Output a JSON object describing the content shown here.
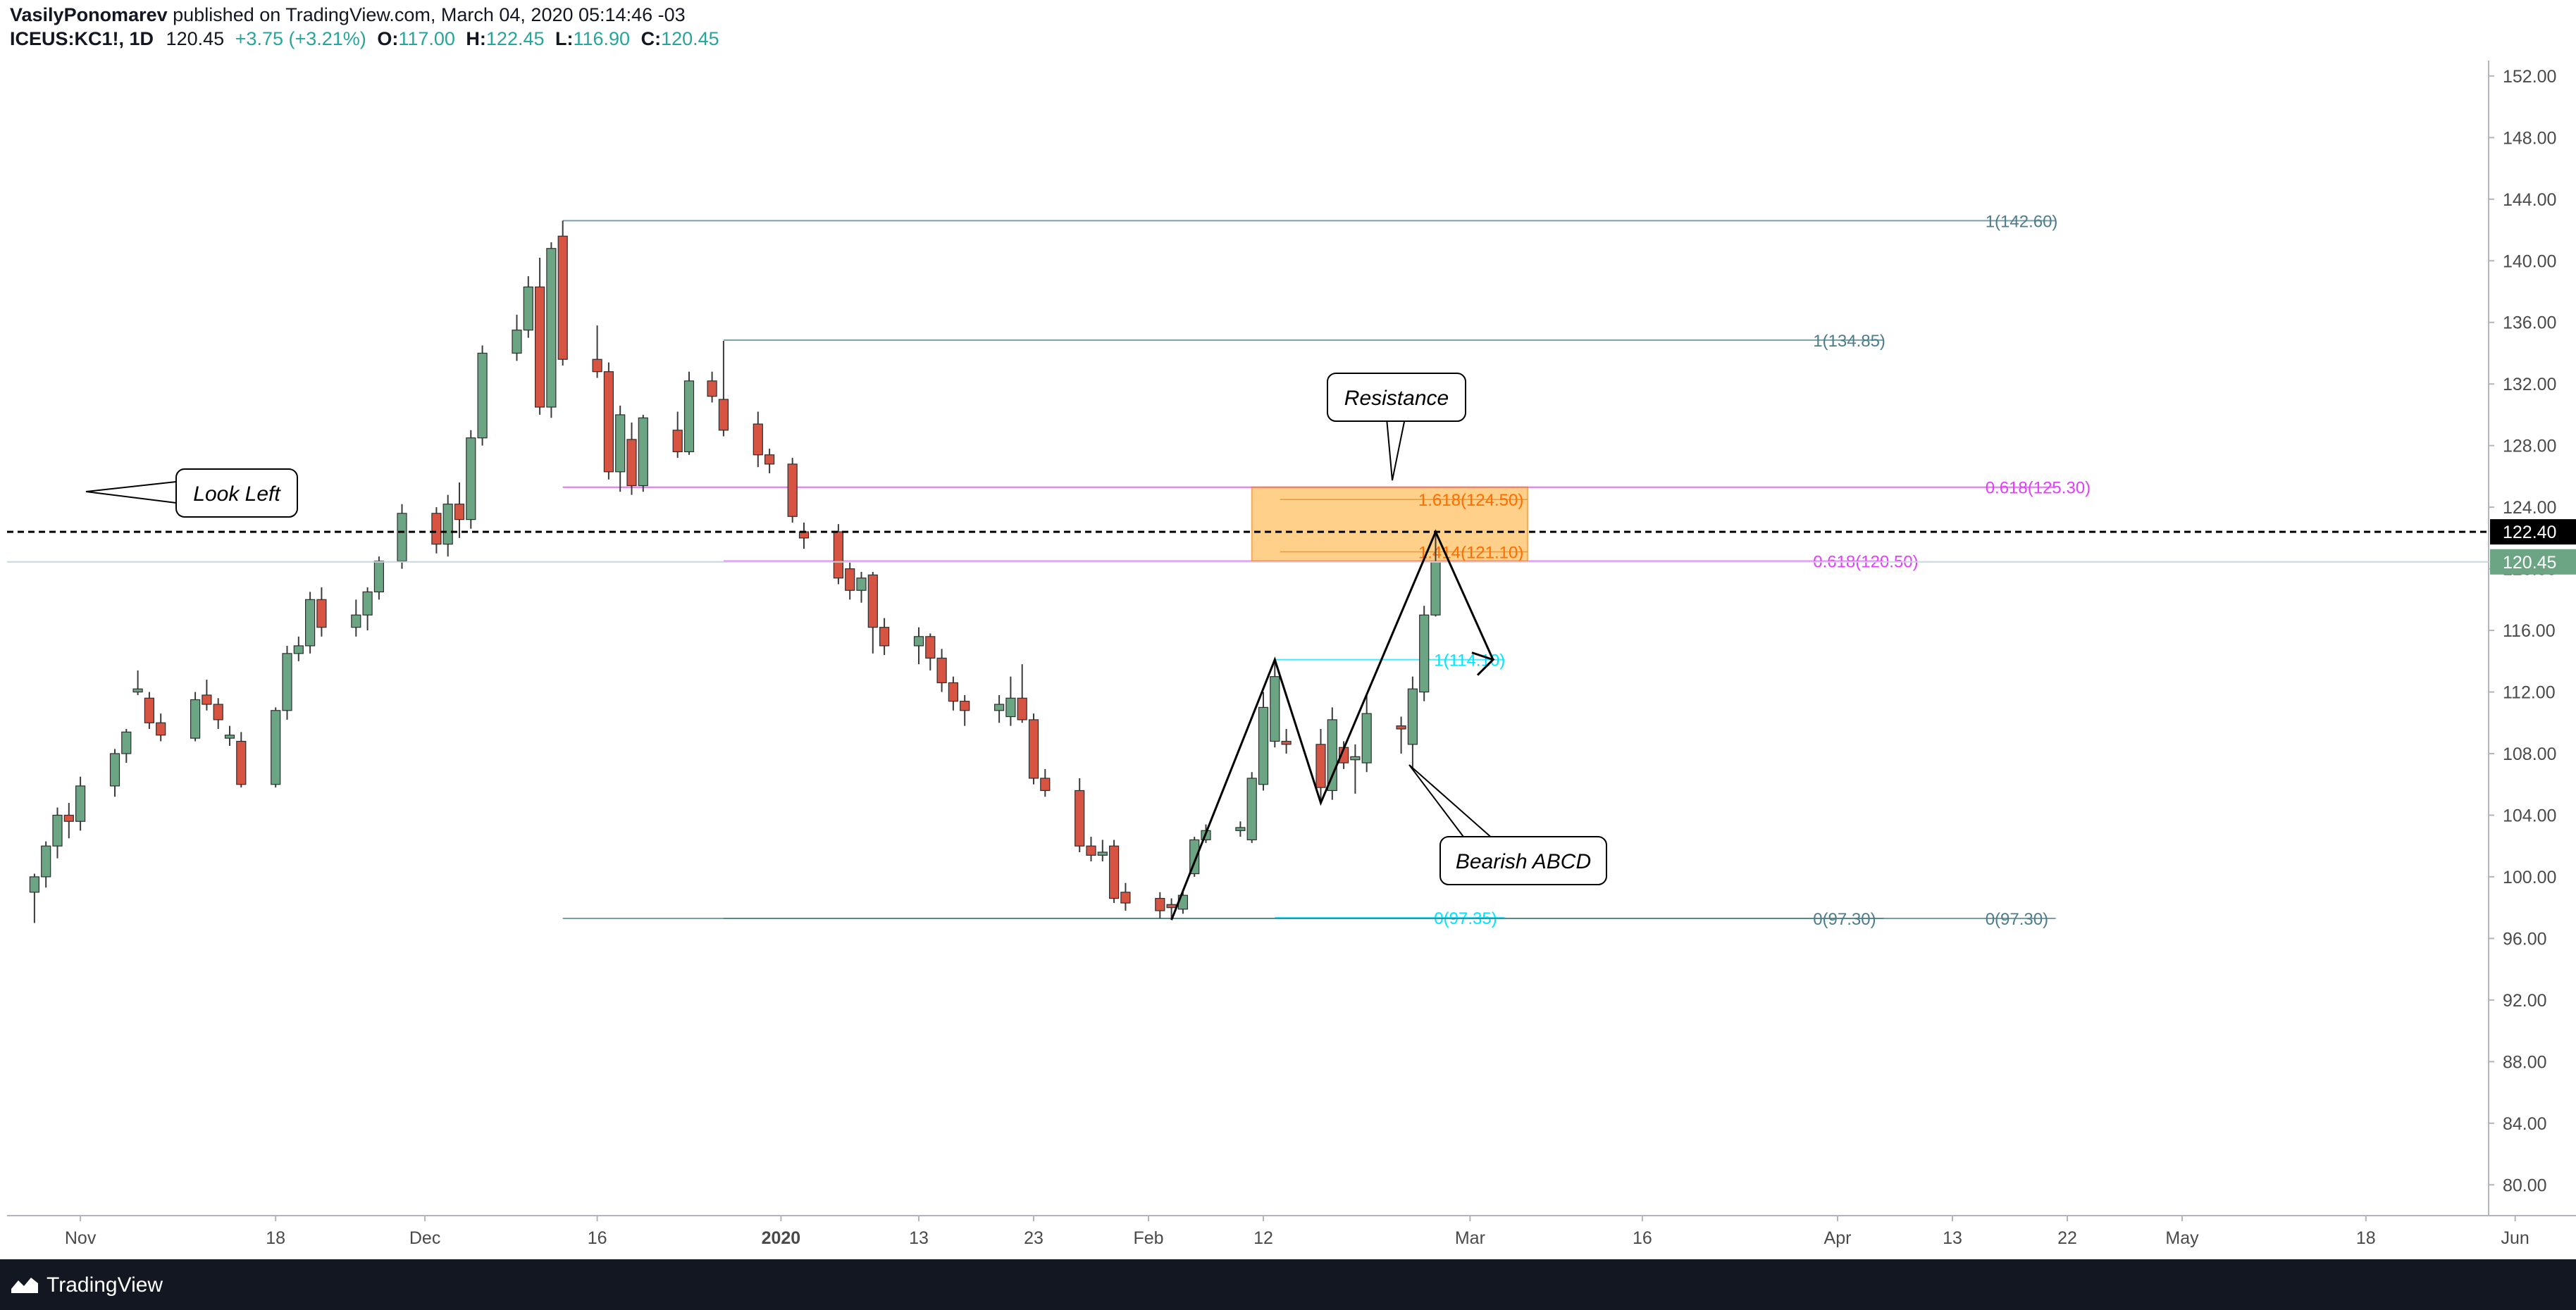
{
  "header": {
    "author": "VasilyPonomarev",
    "published": "published on TradingView.com, March 04, 2020 05:14:46 -03",
    "symbol": "ICEUS:KC1!, 1D",
    "last": "120.45",
    "change": "+3.75 (+3.21%)",
    "o_label": "O:",
    "o_value": "117.00",
    "h_label": "H:",
    "h_value": "122.45",
    "l_label": "L:",
    "l_value": "116.90",
    "c_label": "C:",
    "c_value": "120.45"
  },
  "footer": {
    "brand": "TradingView"
  },
  "colors": {
    "up": "#6ba583",
    "down": "#d75442",
    "wick": "#3b3b3b",
    "fib_gray": "#4d7e8a",
    "fib_magenta": "#e040fb",
    "fib_cyan": "#00e5ff",
    "fib_orange": "#ff6d00",
    "zone": "#ffb74d"
  },
  "chart_data": {
    "type": "candlestick",
    "y_axis": {
      "min": 78,
      "max": 153,
      "ticks": [
        80,
        84,
        88,
        92,
        96,
        100,
        104,
        108,
        112,
        116,
        120,
        124,
        128,
        132,
        136,
        140,
        144,
        148,
        152
      ],
      "labels": [
        "80.00",
        "84.00",
        "88.00",
        "92.00",
        "96.00",
        "100.00",
        "104.00",
        "108.00",
        "112.00",
        "116.00",
        "120.00",
        "124.00",
        "128.00",
        "132.00",
        "136.00",
        "140.00",
        "144.00",
        "148.00",
        "152.00"
      ]
    },
    "x_axis": {
      "start_date": "2019-10-25",
      "ticks": [
        {
          "d": 7,
          "label": "Nov",
          "bold": false
        },
        {
          "d": 24,
          "label": "18",
          "bold": false
        },
        {
          "d": 37,
          "label": "Dec",
          "bold": false
        },
        {
          "d": 52,
          "label": "16",
          "bold": false
        },
        {
          "d": 68,
          "label": "2020",
          "bold": true
        },
        {
          "d": 80,
          "label": "13",
          "bold": false
        },
        {
          "d": 90,
          "label": "23",
          "bold": false
        },
        {
          "d": 100,
          "label": "Feb",
          "bold": false
        },
        {
          "d": 110,
          "label": "12",
          "bold": false
        },
        {
          "d": 128,
          "label": "Mar",
          "bold": false
        },
        {
          "d": 143,
          "label": "16",
          "bold": false
        },
        {
          "d": 160,
          "label": "Apr",
          "bold": false
        },
        {
          "d": 170,
          "label": "13",
          "bold": false
        },
        {
          "d": 180,
          "label": "22",
          "bold": false
        },
        {
          "d": 190,
          "label": "May",
          "bold": false
        },
        {
          "d": 206,
          "label": "18",
          "bold": false
        },
        {
          "d": 219,
          "label": "Jun",
          "bold": false
        }
      ]
    },
    "candles": [
      {
        "date": "2019-10-25",
        "o": 100.5,
        "h": 101.0,
        "l": 97.2,
        "c": 99.0
      },
      {
        "date": "2019-10-28",
        "o": 99.0,
        "h": 100.2,
        "l": 97.0,
        "c": 100.0
      },
      {
        "date": "2019-10-29",
        "o": 100.0,
        "h": 102.3,
        "l": 99.3,
        "c": 102.0
      },
      {
        "date": "2019-10-30",
        "o": 102.0,
        "h": 104.5,
        "l": 101.2,
        "c": 104.0
      },
      {
        "date": "2019-10-31",
        "o": 104.0,
        "h": 104.8,
        "l": 102.5,
        "c": 103.6
      },
      {
        "date": "2019-11-01",
        "o": 103.6,
        "h": 106.5,
        "l": 103.0,
        "c": 105.9
      },
      {
        "date": "2019-11-04",
        "o": 105.9,
        "h": 108.3,
        "l": 105.2,
        "c": 108.0
      },
      {
        "date": "2019-11-05",
        "o": 108.0,
        "h": 109.6,
        "l": 107.4,
        "c": 109.4
      },
      {
        "date": "2019-11-06",
        "o": 112.0,
        "h": 113.4,
        "l": 111.8,
        "c": 112.2
      },
      {
        "date": "2019-11-07",
        "o": 111.6,
        "h": 112.0,
        "l": 109.6,
        "c": 110.0
      },
      {
        "date": "2019-11-08",
        "o": 110.0,
        "h": 110.6,
        "l": 108.8,
        "c": 109.2
      },
      {
        "date": "2019-11-11",
        "o": 109.0,
        "h": 112.0,
        "l": 108.8,
        "c": 111.5
      },
      {
        "date": "2019-11-12",
        "o": 111.8,
        "h": 112.8,
        "l": 110.8,
        "c": 111.2
      },
      {
        "date": "2019-11-13",
        "o": 111.2,
        "h": 111.6,
        "l": 109.6,
        "c": 110.2
      },
      {
        "date": "2019-11-14",
        "o": 109.0,
        "h": 109.8,
        "l": 108.5,
        "c": 109.2
      },
      {
        "date": "2019-11-15",
        "o": 108.8,
        "h": 109.4,
        "l": 105.8,
        "c": 106.0
      },
      {
        "date": "2019-11-18",
        "o": 106.0,
        "h": 111.0,
        "l": 105.8,
        "c": 110.8
      },
      {
        "date": "2019-11-19",
        "o": 110.8,
        "h": 115.0,
        "l": 110.2,
        "c": 114.5
      },
      {
        "date": "2019-11-20",
        "o": 114.5,
        "h": 115.6,
        "l": 114.0,
        "c": 115.0
      },
      {
        "date": "2019-11-21",
        "o": 115.0,
        "h": 118.5,
        "l": 114.5,
        "c": 118.0
      },
      {
        "date": "2019-11-22",
        "o": 118.0,
        "h": 118.8,
        "l": 115.6,
        "c": 116.2
      },
      {
        "date": "2019-11-25",
        "o": 116.2,
        "h": 118.0,
        "l": 115.6,
        "c": 117.0
      },
      {
        "date": "2019-11-26",
        "o": 117.0,
        "h": 118.8,
        "l": 116.0,
        "c": 118.5
      },
      {
        "date": "2019-11-27",
        "o": 118.5,
        "h": 120.8,
        "l": 118.0,
        "c": 120.5
      },
      {
        "date": "2019-11-29",
        "o": 120.5,
        "h": 124.2,
        "l": 120.0,
        "c": 123.6
      },
      {
        "date": "2019-12-02",
        "o": 123.6,
        "h": 124.0,
        "l": 121.0,
        "c": 121.6
      },
      {
        "date": "2019-12-03",
        "o": 121.6,
        "h": 124.8,
        "l": 120.8,
        "c": 124.2
      },
      {
        "date": "2019-12-04",
        "o": 124.2,
        "h": 125.6,
        "l": 122.0,
        "c": 123.2
      },
      {
        "date": "2019-12-05",
        "o": 123.2,
        "h": 129.0,
        "l": 122.6,
        "c": 128.5
      },
      {
        "date": "2019-12-06",
        "o": 128.5,
        "h": 134.5,
        "l": 128.0,
        "c": 134.0
      },
      {
        "date": "2019-12-09",
        "o": 134.0,
        "h": 136.5,
        "l": 133.5,
        "c": 135.5
      },
      {
        "date": "2019-12-10",
        "o": 135.5,
        "h": 139.0,
        "l": 135.0,
        "c": 138.3
      },
      {
        "date": "2019-12-11",
        "o": 138.3,
        "h": 140.2,
        "l": 130.0,
        "c": 130.5
      },
      {
        "date": "2019-12-12",
        "o": 130.5,
        "h": 141.2,
        "l": 129.8,
        "c": 140.8
      },
      {
        "date": "2019-12-13",
        "o": 141.6,
        "h": 142.6,
        "l": 133.2,
        "c": 133.6
      },
      {
        "date": "2019-12-16",
        "o": 133.6,
        "h": 135.8,
        "l": 132.4,
        "c": 132.8
      },
      {
        "date": "2019-12-17",
        "o": 132.8,
        "h": 133.4,
        "l": 125.8,
        "c": 126.3
      },
      {
        "date": "2019-12-18",
        "o": 126.3,
        "h": 130.6,
        "l": 125.0,
        "c": 130.0
      },
      {
        "date": "2019-12-19",
        "o": 128.4,
        "h": 129.5,
        "l": 124.8,
        "c": 125.4
      },
      {
        "date": "2019-12-20",
        "o": 125.4,
        "h": 130.0,
        "l": 125.0,
        "c": 129.8
      },
      {
        "date": "2019-12-23",
        "o": 129.0,
        "h": 130.2,
        "l": 127.2,
        "c": 127.6
      },
      {
        "date": "2019-12-24",
        "o": 127.6,
        "h": 132.8,
        "l": 127.4,
        "c": 132.2
      },
      {
        "date": "2019-12-26",
        "o": 132.2,
        "h": 132.8,
        "l": 130.8,
        "c": 131.2
      },
      {
        "date": "2019-12-27",
        "o": 131.0,
        "h": 134.8,
        "l": 128.6,
        "c": 129.0
      },
      {
        "date": "2019-12-30",
        "o": 129.4,
        "h": 130.2,
        "l": 126.6,
        "c": 127.4
      },
      {
        "date": "2019-12-31",
        "o": 127.4,
        "h": 127.8,
        "l": 126.2,
        "c": 126.8
      },
      {
        "date": "2020-01-02",
        "o": 126.8,
        "h": 127.2,
        "l": 123.0,
        "c": 123.4
      },
      {
        "date": "2020-01-03",
        "o": 122.4,
        "h": 123.0,
        "l": 121.3,
        "c": 122.0
      },
      {
        "date": "2020-01-06",
        "o": 122.4,
        "h": 122.9,
        "l": 119.0,
        "c": 119.4
      },
      {
        "date": "2020-01-07",
        "o": 120.0,
        "h": 120.4,
        "l": 118.0,
        "c": 118.6
      },
      {
        "date": "2020-01-08",
        "o": 118.6,
        "h": 119.8,
        "l": 117.8,
        "c": 119.4
      },
      {
        "date": "2020-01-09",
        "o": 119.6,
        "h": 119.8,
        "l": 114.5,
        "c": 116.2
      },
      {
        "date": "2020-01-10",
        "o": 116.2,
        "h": 116.8,
        "l": 114.4,
        "c": 115.0
      },
      {
        "date": "2020-01-13",
        "o": 115.0,
        "h": 116.2,
        "l": 113.8,
        "c": 115.6
      },
      {
        "date": "2020-01-14",
        "o": 115.6,
        "h": 115.8,
        "l": 113.4,
        "c": 114.2
      },
      {
        "date": "2020-01-15",
        "o": 114.2,
        "h": 114.8,
        "l": 112.0,
        "c": 112.6
      },
      {
        "date": "2020-01-16",
        "o": 112.6,
        "h": 113.0,
        "l": 110.8,
        "c": 111.4
      },
      {
        "date": "2020-01-17",
        "o": 111.4,
        "h": 111.8,
        "l": 109.8,
        "c": 110.8
      },
      {
        "date": "2020-01-20",
        "o": 110.8,
        "h": 111.8,
        "l": 110.0,
        "c": 111.2
      },
      {
        "date": "2020-01-21",
        "o": 110.4,
        "h": 113.0,
        "l": 109.8,
        "c": 111.6
      },
      {
        "date": "2020-01-22",
        "o": 111.6,
        "h": 113.8,
        "l": 110.0,
        "c": 110.2
      },
      {
        "date": "2020-01-23",
        "o": 110.2,
        "h": 110.6,
        "l": 106.0,
        "c": 106.4
      },
      {
        "date": "2020-01-24",
        "o": 106.4,
        "h": 107.0,
        "l": 105.2,
        "c": 105.6
      },
      {
        "date": "2020-01-27",
        "o": 105.6,
        "h": 106.4,
        "l": 101.6,
        "c": 102.0
      },
      {
        "date": "2020-01-28",
        "o": 102.0,
        "h": 102.6,
        "l": 101.0,
        "c": 101.4
      },
      {
        "date": "2020-01-29",
        "o": 101.4,
        "h": 102.4,
        "l": 101.0,
        "c": 101.6
      },
      {
        "date": "2020-01-30",
        "o": 102.0,
        "h": 102.4,
        "l": 98.3,
        "c": 98.6
      },
      {
        "date": "2020-01-31",
        "o": 99.0,
        "h": 99.6,
        "l": 97.8,
        "c": 98.3
      },
      {
        "date": "2020-02-03",
        "o": 98.6,
        "h": 99.0,
        "l": 97.3,
        "c": 97.8
      },
      {
        "date": "2020-02-04",
        "o": 98.2,
        "h": 98.6,
        "l": 97.3,
        "c": 98.0
      },
      {
        "date": "2020-02-05",
        "o": 97.9,
        "h": 99.2,
        "l": 97.6,
        "c": 98.8
      },
      {
        "date": "2020-02-06",
        "o": 100.2,
        "h": 102.6,
        "l": 100.0,
        "c": 102.4
      },
      {
        "date": "2020-02-07",
        "o": 102.4,
        "h": 103.4,
        "l": 102.2,
        "c": 103.0
      },
      {
        "date": "2020-02-10",
        "o": 103.0,
        "h": 103.6,
        "l": 102.6,
        "c": 103.2
      },
      {
        "date": "2020-02-11",
        "o": 102.4,
        "h": 106.8,
        "l": 102.2,
        "c": 106.4
      },
      {
        "date": "2020-02-12",
        "o": 106.0,
        "h": 112.0,
        "l": 105.6,
        "c": 111.0
      },
      {
        "date": "2020-02-13",
        "o": 108.8,
        "h": 114.1,
        "l": 108.4,
        "c": 113.0
      },
      {
        "date": "2020-02-14",
        "o": 108.8,
        "h": 109.6,
        "l": 108.0,
        "c": 108.6
      },
      {
        "date": "2020-02-17",
        "o": 108.6,
        "h": 109.6,
        "l": 104.8,
        "c": 105.8
      },
      {
        "date": "2020-02-18",
        "o": 105.6,
        "h": 111.0,
        "l": 105.0,
        "c": 110.2
      },
      {
        "date": "2020-02-19",
        "o": 108.4,
        "h": 108.8,
        "l": 107.0,
        "c": 107.4
      },
      {
        "date": "2020-02-20",
        "o": 107.6,
        "h": 108.6,
        "l": 105.4,
        "c": 107.8
      },
      {
        "date": "2020-02-21",
        "o": 107.4,
        "h": 111.8,
        "l": 106.8,
        "c": 110.6
      },
      {
        "date": "2020-02-24",
        "o": 109.8,
        "h": 110.4,
        "l": 108.0,
        "c": 109.6
      },
      {
        "date": "2020-02-25",
        "o": 108.6,
        "h": 113.0,
        "l": 107.0,
        "c": 112.2
      },
      {
        "date": "2020-02-26",
        "o": 112.0,
        "h": 117.6,
        "l": 111.4,
        "c": 117.0
      },
      {
        "date": "2020-02-27",
        "o": 117.0,
        "h": 122.45,
        "l": 116.9,
        "c": 120.45
      }
    ],
    "fib_levels": [
      {
        "label": "1(142.60)",
        "value": 142.6,
        "color": "#4d7e8a",
        "x_from": "2019-12-13",
        "x_to": "2020-04-21"
      },
      {
        "label": "1(134.85)",
        "value": 134.85,
        "color": "#4d7e8a",
        "x_from": "2019-12-27",
        "x_to": "2020-04-06"
      },
      {
        "label": "0.618(125.30)",
        "value": 125.3,
        "color": "#e040fb",
        "x_from": "2019-12-13",
        "x_to": "2020-04-21"
      },
      {
        "label": "0.618(120.50)",
        "value": 120.5,
        "color": "#e040fb",
        "x_from": "2019-12-27",
        "x_to": "2020-04-06"
      },
      {
        "label": "1(114.10)",
        "value": 114.1,
        "color": "#00e5ff",
        "x_from": "2020-02-13",
        "x_to": "2020-03-04"
      },
      {
        "label": "0(97.35)",
        "value": 97.35,
        "color": "#00e5ff",
        "x_from": "2020-02-13",
        "x_to": "2020-03-04"
      },
      {
        "label": "0(97.30)",
        "value": 97.3,
        "color": "#4d7e8a",
        "x_from": "2019-12-27",
        "x_to": "2020-04-06"
      },
      {
        "label": "0(97.30)",
        "value": 97.3,
        "color": "#4d7e8a",
        "x_from": "2019-12-13",
        "x_to": "2020-04-21"
      }
    ],
    "zone": {
      "top": 125.3,
      "bottom": 120.5,
      "label_top": "1.618(124.50)",
      "value_top": 124.5,
      "label_bottom": "1.414(121.10)",
      "value_bottom": 121.1
    },
    "hline": {
      "value": 122.4,
      "label": "122.40"
    },
    "last_price": {
      "value": 120.45,
      "label": "120.45"
    },
    "callouts": [
      {
        "text": "Look Left"
      },
      {
        "text": "Resistance"
      },
      {
        "text": "Bearish ABCD"
      }
    ],
    "pattern": [
      {
        "date": "2020-02-04",
        "price": 97.2
      },
      {
        "date": "2020-02-13",
        "price": 114.1
      },
      {
        "date": "2020-02-17",
        "price": 104.8
      },
      {
        "date": "2020-02-27",
        "price": 122.4
      },
      {
        "date": "2020-03-03",
        "price": 114.1
      }
    ]
  }
}
